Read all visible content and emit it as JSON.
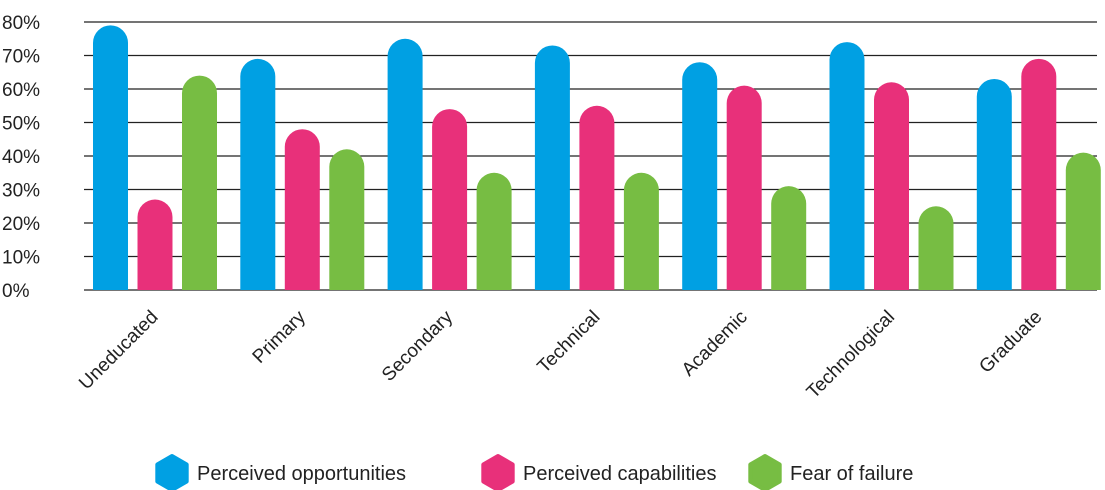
{
  "chart_data": {
    "type": "bar",
    "title": "",
    "xlabel": "",
    "ylabel": "",
    "ylim": [
      0,
      80
    ],
    "yticks": [
      "0%",
      "10%",
      "20%",
      "30%",
      "40%",
      "50%",
      "60%",
      "70%",
      "80%"
    ],
    "grid": true,
    "legend_position": "bottom",
    "categories": [
      "Uneducated",
      "Primary",
      "Secondary",
      "Technical",
      "Academic",
      "Technological",
      "Graduate"
    ],
    "series": [
      {
        "name": "Perceived opportunities",
        "color": "#00a0e3",
        "values": [
          79,
          69,
          75,
          73,
          68,
          74,
          63
        ]
      },
      {
        "name": "Perceived capabilities",
        "color": "#e8307a",
        "values": [
          27,
          48,
          54,
          55,
          61,
          62,
          69
        ]
      },
      {
        "name": "Fear of failure",
        "color": "#77bd43",
        "values": [
          64,
          42,
          35,
          35,
          31,
          25,
          41
        ]
      }
    ]
  }
}
